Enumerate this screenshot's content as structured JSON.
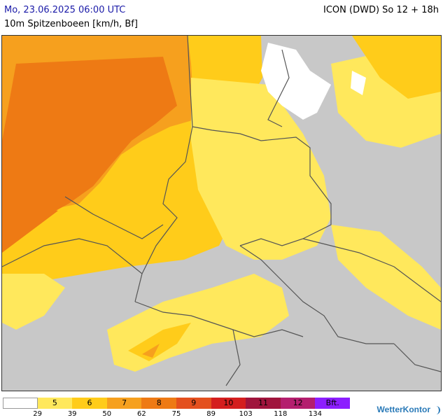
{
  "header": {
    "datetime": "Mo, 23.06.2025 06:00 UTC",
    "model": "ICON (DWD) So 12 + 18h",
    "parameter": "10m Spitzenboeen [km/h, Bf]"
  },
  "legend": {
    "categories": [
      {
        "label": "",
        "color": "#ffffff"
      },
      {
        "label": "5",
        "color": "#ffe85c"
      },
      {
        "label": "6",
        "color": "#ffcc1a"
      },
      {
        "label": "7",
        "color": "#f6a01e"
      },
      {
        "label": "8",
        "color": "#ee7a14"
      },
      {
        "label": "9",
        "color": "#e4501e"
      },
      {
        "label": "10",
        "color": "#d41e1e"
      },
      {
        "label": "11",
        "color": "#a0143c"
      },
      {
        "label": "12",
        "color": "#b41e6e"
      },
      {
        "label": "Bft.",
        "color": "#8c1eff"
      }
    ],
    "thresholds": [
      "29",
      "39",
      "50",
      "62",
      "75",
      "89",
      "103",
      "118",
      "134"
    ]
  },
  "map": {
    "background_color": "#c8c8c8",
    "sea_color": "#ffffff",
    "border_color": "#555555"
  },
  "brand": {
    "name": "WetterKontor"
  }
}
